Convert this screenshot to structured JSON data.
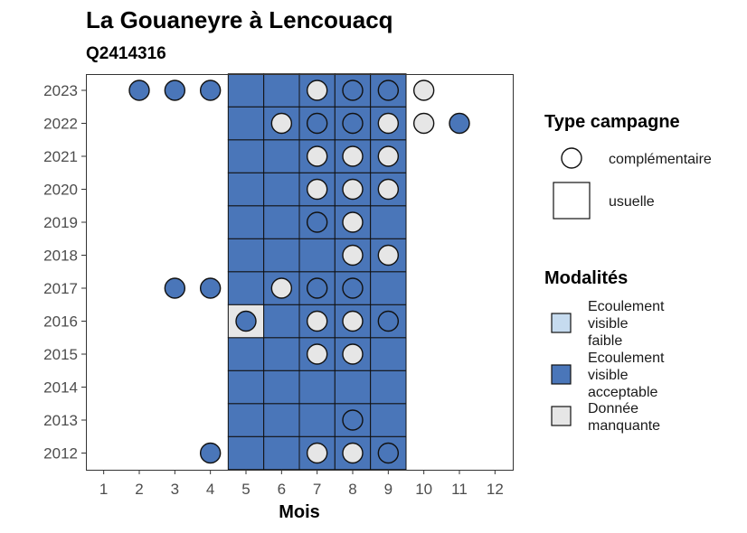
{
  "chart_data": {
    "type": "heatmap",
    "title": "La Gouaneyre à Lencouacq",
    "subtitle": "Q2414316",
    "xlabel": "Mois",
    "ylabel": "",
    "x_ticks": [
      "1",
      "2",
      "3",
      "4",
      "5",
      "6",
      "7",
      "8",
      "9",
      "10",
      "11",
      "12"
    ],
    "y_ticks": [
      "2012",
      "2013",
      "2014",
      "2015",
      "2016",
      "2017",
      "2018",
      "2019",
      "2020",
      "2021",
      "2022",
      "2023"
    ],
    "xlim": [
      0.5,
      12.5
    ],
    "grid": false,
    "colors": {
      "Ecoulement visible faible": "#c6dbef",
      "Ecoulement visible acceptable": "#4a76b9",
      "Donnée manquante": "#e6e6e6"
    },
    "usuelle_months": [
      5,
      6,
      7,
      8,
      9
    ],
    "usuelle_cells": [
      {
        "year": 2012,
        "month": 5,
        "modalite": "Ecoulement visible acceptable"
      },
      {
        "year": 2012,
        "month": 6,
        "modalite": "Ecoulement visible acceptable"
      },
      {
        "year": 2012,
        "month": 7,
        "modalite": "Ecoulement visible acceptable"
      },
      {
        "year": 2012,
        "month": 8,
        "modalite": "Ecoulement visible acceptable"
      },
      {
        "year": 2012,
        "month": 9,
        "modalite": "Ecoulement visible acceptable"
      },
      {
        "year": 2013,
        "month": 5,
        "modalite": "Ecoulement visible acceptable"
      },
      {
        "year": 2013,
        "month": 6,
        "modalite": "Ecoulement visible acceptable"
      },
      {
        "year": 2013,
        "month": 7,
        "modalite": "Ecoulement visible acceptable"
      },
      {
        "year": 2013,
        "month": 8,
        "modalite": "Ecoulement visible acceptable"
      },
      {
        "year": 2013,
        "month": 9,
        "modalite": "Ecoulement visible acceptable"
      },
      {
        "year": 2014,
        "month": 5,
        "modalite": "Ecoulement visible acceptable"
      },
      {
        "year": 2014,
        "month": 6,
        "modalite": "Ecoulement visible acceptable"
      },
      {
        "year": 2014,
        "month": 7,
        "modalite": "Ecoulement visible acceptable"
      },
      {
        "year": 2014,
        "month": 8,
        "modalite": "Ecoulement visible acceptable"
      },
      {
        "year": 2014,
        "month": 9,
        "modalite": "Ecoulement visible acceptable"
      },
      {
        "year": 2015,
        "month": 5,
        "modalite": "Ecoulement visible acceptable"
      },
      {
        "year": 2015,
        "month": 6,
        "modalite": "Ecoulement visible acceptable"
      },
      {
        "year": 2015,
        "month": 7,
        "modalite": "Ecoulement visible acceptable"
      },
      {
        "year": 2015,
        "month": 8,
        "modalite": "Ecoulement visible acceptable"
      },
      {
        "year": 2015,
        "month": 9,
        "modalite": "Ecoulement visible acceptable"
      },
      {
        "year": 2016,
        "month": 5,
        "modalite": "Donnée manquante"
      },
      {
        "year": 2016,
        "month": 6,
        "modalite": "Ecoulement visible acceptable"
      },
      {
        "year": 2016,
        "month": 7,
        "modalite": "Ecoulement visible acceptable"
      },
      {
        "year": 2016,
        "month": 8,
        "modalite": "Ecoulement visible acceptable"
      },
      {
        "year": 2016,
        "month": 9,
        "modalite": "Ecoulement visible acceptable"
      },
      {
        "year": 2017,
        "month": 5,
        "modalite": "Ecoulement visible acceptable"
      },
      {
        "year": 2017,
        "month": 6,
        "modalite": "Ecoulement visible acceptable"
      },
      {
        "year": 2017,
        "month": 7,
        "modalite": "Ecoulement visible acceptable"
      },
      {
        "year": 2017,
        "month": 8,
        "modalite": "Ecoulement visible acceptable"
      },
      {
        "year": 2017,
        "month": 9,
        "modalite": "Ecoulement visible acceptable"
      },
      {
        "year": 2018,
        "month": 5,
        "modalite": "Ecoulement visible acceptable"
      },
      {
        "year": 2018,
        "month": 6,
        "modalite": "Ecoulement visible acceptable"
      },
      {
        "year": 2018,
        "month": 7,
        "modalite": "Ecoulement visible acceptable"
      },
      {
        "year": 2018,
        "month": 8,
        "modalite": "Ecoulement visible acceptable"
      },
      {
        "year": 2018,
        "month": 9,
        "modalite": "Ecoulement visible acceptable"
      },
      {
        "year": 2019,
        "month": 5,
        "modalite": "Ecoulement visible acceptable"
      },
      {
        "year": 2019,
        "month": 6,
        "modalite": "Ecoulement visible acceptable"
      },
      {
        "year": 2019,
        "month": 7,
        "modalite": "Ecoulement visible acceptable"
      },
      {
        "year": 2019,
        "month": 8,
        "modalite": "Ecoulement visible acceptable"
      },
      {
        "year": 2019,
        "month": 9,
        "modalite": "Ecoulement visible acceptable"
      },
      {
        "year": 2020,
        "month": 5,
        "modalite": "Ecoulement visible acceptable"
      },
      {
        "year": 2020,
        "month": 6,
        "modalite": "Ecoulement visible acceptable"
      },
      {
        "year": 2020,
        "month": 7,
        "modalite": "Ecoulement visible acceptable"
      },
      {
        "year": 2020,
        "month": 8,
        "modalite": "Ecoulement visible acceptable"
      },
      {
        "year": 2020,
        "month": 9,
        "modalite": "Ecoulement visible acceptable"
      },
      {
        "year": 2021,
        "month": 5,
        "modalite": "Ecoulement visible acceptable"
      },
      {
        "year": 2021,
        "month": 6,
        "modalite": "Ecoulement visible acceptable"
      },
      {
        "year": 2021,
        "month": 7,
        "modalite": "Ecoulement visible acceptable"
      },
      {
        "year": 2021,
        "month": 8,
        "modalite": "Ecoulement visible acceptable"
      },
      {
        "year": 2021,
        "month": 9,
        "modalite": "Ecoulement visible acceptable"
      },
      {
        "year": 2022,
        "month": 5,
        "modalite": "Ecoulement visible acceptable"
      },
      {
        "year": 2022,
        "month": 6,
        "modalite": "Ecoulement visible acceptable"
      },
      {
        "year": 2022,
        "month": 7,
        "modalite": "Ecoulement visible acceptable"
      },
      {
        "year": 2022,
        "month": 8,
        "modalite": "Ecoulement visible acceptable"
      },
      {
        "year": 2022,
        "month": 9,
        "modalite": "Ecoulement visible acceptable"
      },
      {
        "year": 2023,
        "month": 5,
        "modalite": "Ecoulement visible acceptable"
      },
      {
        "year": 2023,
        "month": 6,
        "modalite": "Ecoulement visible acceptable"
      },
      {
        "year": 2023,
        "month": 7,
        "modalite": "Ecoulement visible acceptable"
      },
      {
        "year": 2023,
        "month": 8,
        "modalite": "Ecoulement visible acceptable"
      },
      {
        "year": 2023,
        "month": 9,
        "modalite": "Ecoulement visible acceptable"
      }
    ],
    "complementaire_points": [
      {
        "year": 2023,
        "month": 2,
        "modalite": "Ecoulement visible acceptable"
      },
      {
        "year": 2023,
        "month": 3,
        "modalite": "Ecoulement visible acceptable"
      },
      {
        "year": 2023,
        "month": 4,
        "modalite": "Ecoulement visible acceptable"
      },
      {
        "year": 2023,
        "month": 7,
        "modalite": "Donnée manquante"
      },
      {
        "year": 2023,
        "month": 8,
        "modalite": "Ecoulement visible acceptable"
      },
      {
        "year": 2023,
        "month": 9,
        "modalite": "Ecoulement visible acceptable"
      },
      {
        "year": 2023,
        "month": 10,
        "modalite": "Donnée manquante"
      },
      {
        "year": 2022,
        "month": 6,
        "modalite": "Donnée manquante"
      },
      {
        "year": 2022,
        "month": 7,
        "modalite": "Ecoulement visible acceptable"
      },
      {
        "year": 2022,
        "month": 8,
        "modalite": "Ecoulement visible acceptable"
      },
      {
        "year": 2022,
        "month": 9,
        "modalite": "Donnée manquante"
      },
      {
        "year": 2022,
        "month": 10,
        "modalite": "Donnée manquante"
      },
      {
        "year": 2022,
        "month": 11,
        "modalite": "Ecoulement visible acceptable"
      },
      {
        "year": 2021,
        "month": 7,
        "modalite": "Donnée manquante"
      },
      {
        "year": 2021,
        "month": 8,
        "modalite": "Donnée manquante"
      },
      {
        "year": 2021,
        "month": 9,
        "modalite": "Donnée manquante"
      },
      {
        "year": 2020,
        "month": 7,
        "modalite": "Donnée manquante"
      },
      {
        "year": 2020,
        "month": 8,
        "modalite": "Donnée manquante"
      },
      {
        "year": 2020,
        "month": 9,
        "modalite": "Donnée manquante"
      },
      {
        "year": 2019,
        "month": 7,
        "modalite": "Ecoulement visible acceptable"
      },
      {
        "year": 2019,
        "month": 8,
        "modalite": "Donnée manquante"
      },
      {
        "year": 2018,
        "month": 8,
        "modalite": "Donnée manquante"
      },
      {
        "year": 2018,
        "month": 9,
        "modalite": "Donnée manquante"
      },
      {
        "year": 2017,
        "month": 3,
        "modalite": "Ecoulement visible acceptable"
      },
      {
        "year": 2017,
        "month": 4,
        "modalite": "Ecoulement visible acceptable"
      },
      {
        "year": 2017,
        "month": 6,
        "modalite": "Donnée manquante"
      },
      {
        "year": 2017,
        "month": 7,
        "modalite": "Ecoulement visible acceptable"
      },
      {
        "year": 2017,
        "month": 8,
        "modalite": "Ecoulement visible acceptable"
      },
      {
        "year": 2016,
        "month": 5,
        "modalite": "Ecoulement visible acceptable"
      },
      {
        "year": 2016,
        "month": 7,
        "modalite": "Donnée manquante"
      },
      {
        "year": 2016,
        "month": 8,
        "modalite": "Donnée manquante"
      },
      {
        "year": 2016,
        "month": 9,
        "modalite": "Ecoulement visible acceptable"
      },
      {
        "year": 2015,
        "month": 7,
        "modalite": "Donnée manquante"
      },
      {
        "year": 2015,
        "month": 8,
        "modalite": "Donnée manquante"
      },
      {
        "year": 2013,
        "month": 8,
        "modalite": "Ecoulement visible acceptable"
      },
      {
        "year": 2012,
        "month": 4,
        "modalite": "Ecoulement visible acceptable"
      },
      {
        "year": 2012,
        "month": 7,
        "modalite": "Donnée manquante"
      },
      {
        "year": 2012,
        "month": 8,
        "modalite": "Donnée manquante"
      },
      {
        "year": 2012,
        "month": 9,
        "modalite": "Ecoulement visible acceptable"
      }
    ],
    "legend": {
      "placement": "right",
      "type_title": "Type campagne",
      "type_items": [
        {
          "label": "complémentaire",
          "shape": "circle"
        },
        {
          "label": "usuelle",
          "shape": "square"
        }
      ],
      "modalites_title": "Modalités",
      "modalites_items": [
        {
          "lines": [
            "Ecoulement",
            "visible",
            "faible"
          ],
          "color": "#c6dbef"
        },
        {
          "lines": [
            "Ecoulement",
            "visible",
            "acceptable"
          ],
          "color": "#4a76b9"
        },
        {
          "lines": [
            "Donnée",
            "manquante"
          ],
          "color": "#e6e6e6"
        }
      ]
    }
  }
}
